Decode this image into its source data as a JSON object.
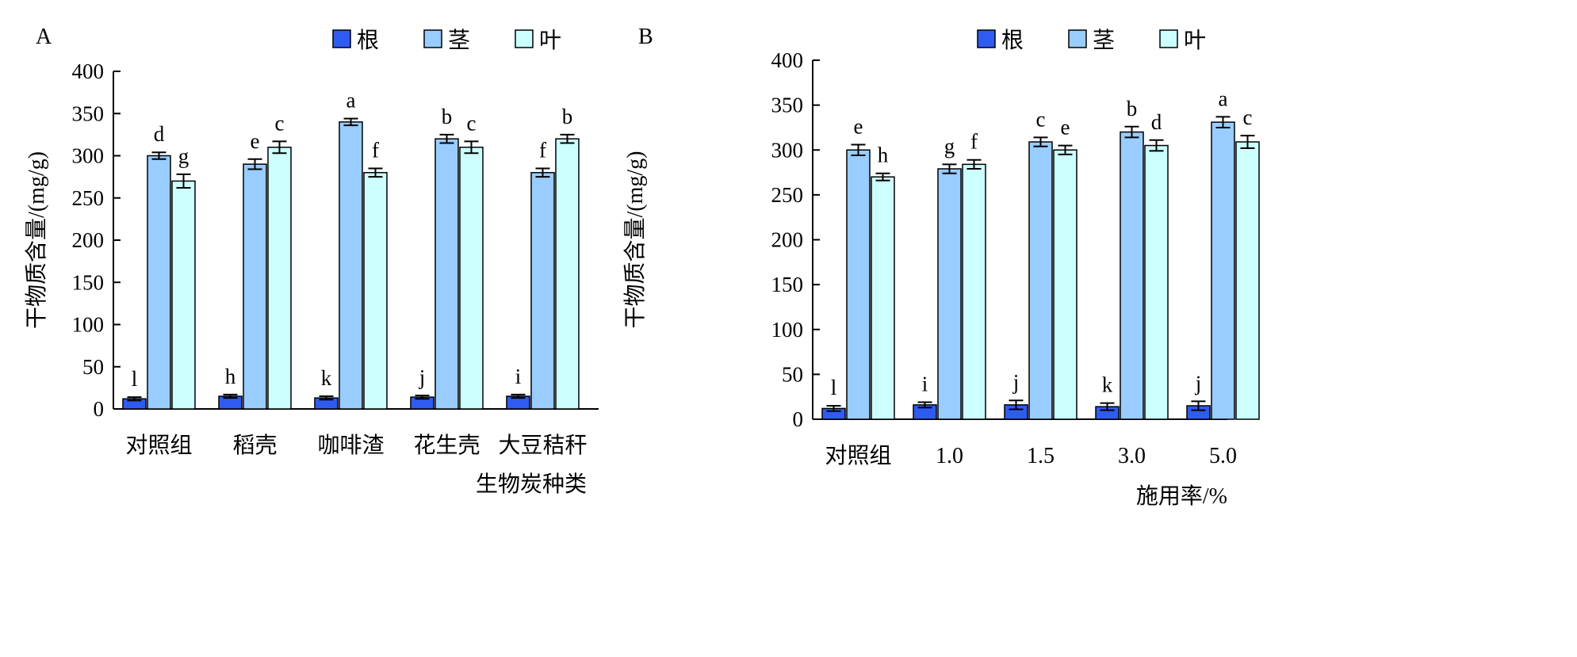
{
  "colors": {
    "root": "#2f5cf0",
    "stem": "#99ccff",
    "leaf": "#ccffff"
  },
  "chart_data": [
    {
      "type": "bar",
      "panel": "A",
      "ylabel": "干物质含量/(mg/g)",
      "xlabel": "生物炭种类",
      "ylim": [
        0,
        400
      ],
      "yticks": [
        "0",
        "50",
        "100",
        "150",
        "200",
        "250",
        "300",
        "350",
        "400"
      ],
      "categories": [
        "对照组",
        "稻壳",
        "咖啡渣",
        "花生壳",
        "大豆秸秆"
      ],
      "legend": [
        "根",
        "茎",
        "叶"
      ],
      "legend_position": "top-right",
      "series": [
        {
          "name": "根",
          "values": [
            12,
            15,
            13,
            14,
            15
          ],
          "errors": [
            2,
            2,
            2,
            2,
            2
          ],
          "letters": [
            "l",
            "h",
            "k",
            "j",
            "i"
          ]
        },
        {
          "name": "茎",
          "values": [
            300,
            290,
            340,
            320,
            280
          ],
          "errors": [
            4,
            6,
            4,
            5,
            5
          ],
          "letters": [
            "d",
            "e",
            "a",
            "b",
            "f"
          ]
        },
        {
          "name": "叶",
          "values": [
            270,
            310,
            280,
            310,
            320
          ],
          "errors": [
            8,
            7,
            5,
            7,
            5
          ],
          "letters": [
            "g",
            "c",
            "f",
            "c",
            "b"
          ]
        }
      ]
    },
    {
      "type": "bar",
      "panel": "B",
      "ylabel": "干物质含量/(mg/g)",
      "xlabel": "施用率/%",
      "ylim": [
        0,
        400
      ],
      "yticks": [
        "0",
        "50",
        "100",
        "150",
        "200",
        "250",
        "300",
        "350",
        "400"
      ],
      "categories": [
        "对照组",
        "1.0",
        "1.5",
        "3.0",
        "5.0"
      ],
      "legend": [
        "根",
        "茎",
        "叶"
      ],
      "legend_position": "top-right",
      "series": [
        {
          "name": "根",
          "values": [
            12,
            16,
            16,
            14,
            15
          ],
          "errors": [
            3,
            3,
            5,
            4,
            5
          ],
          "letters": [
            "l",
            "i",
            "j",
            "k",
            "j"
          ]
        },
        {
          "name": "茎",
          "values": [
            300,
            279,
            309,
            320,
            331
          ],
          "errors": [
            6,
            5,
            5,
            6,
            6
          ],
          "letters": [
            "e",
            "g",
            "c",
            "b",
            "a"
          ]
        },
        {
          "name": "叶",
          "values": [
            270,
            284,
            300,
            305,
            309
          ],
          "errors": [
            4,
            5,
            5,
            6,
            7
          ],
          "letters": [
            "h",
            "f",
            "e",
            "d",
            "c"
          ]
        }
      ]
    }
  ]
}
